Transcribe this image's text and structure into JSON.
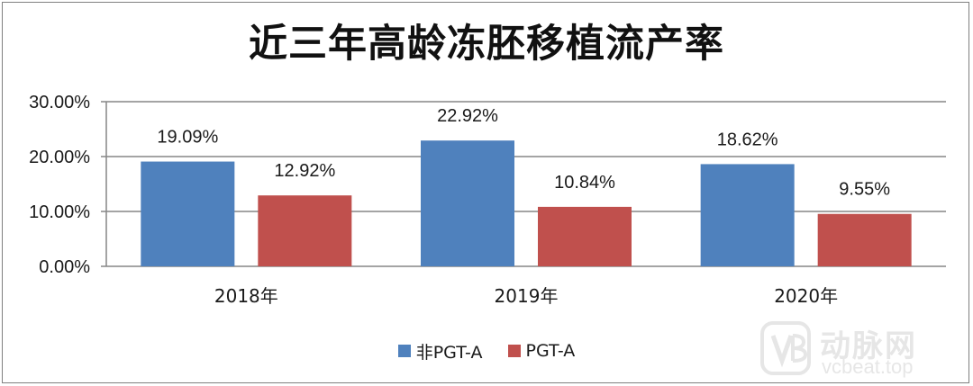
{
  "chart_data": {
    "type": "bar",
    "title": "近三年高龄冻胚移植流产率",
    "categories": [
      "2018年",
      "2019年",
      "2020年"
    ],
    "series": [
      {
        "name": "非PGT-A",
        "color": "#4f81bd",
        "values": [
          19.09,
          22.92,
          18.62
        ],
        "labels": [
          "19.09%",
          "22.92%",
          "18.62%"
        ]
      },
      {
        "name": "PGT-A",
        "color": "#c0504d",
        "values": [
          12.92,
          10.84,
          9.55
        ],
        "labels": [
          "12.92%",
          "10.84%",
          "9.55%"
        ]
      }
    ],
    "yticks": [
      0,
      10,
      20,
      30
    ],
    "ytick_labels": [
      "0.00%",
      "10.00%",
      "20.00%",
      "30.00%"
    ],
    "ylim": [
      0,
      30
    ],
    "xlabel": "",
    "ylabel": "",
    "grid": true,
    "legend_position": "bottom"
  },
  "watermark": {
    "brand": "动脉网",
    "url": "vcbeat.top"
  }
}
